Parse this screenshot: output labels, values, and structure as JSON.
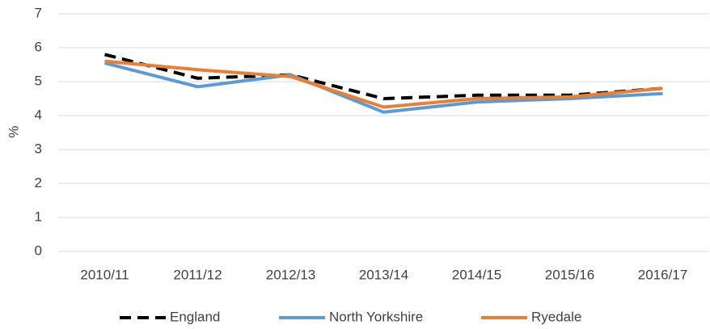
{
  "chart_data": {
    "type": "line",
    "y_label": "%",
    "categories": [
      "2010/11",
      "2011/12",
      "2012/13",
      "2013/14",
      "2014/15",
      "2015/16",
      "2016/17"
    ],
    "series": [
      {
        "name": "England",
        "color": "#000000",
        "dash": true,
        "values": [
          5.8,
          5.1,
          5.2,
          4.5,
          4.6,
          4.6,
          4.8
        ]
      },
      {
        "name": "North Yorkshire",
        "color": "#5b9bd5",
        "dash": false,
        "values": [
          5.55,
          4.85,
          5.2,
          4.1,
          4.4,
          4.5,
          4.65
        ]
      },
      {
        "name": "Ryedale",
        "color": "#ed7d31",
        "dash": false,
        "values": [
          5.6,
          5.35,
          5.15,
          4.25,
          4.5,
          4.55,
          4.8
        ]
      }
    ],
    "ylim": [
      0,
      7
    ],
    "yticks": [
      0,
      1,
      2,
      3,
      4,
      5,
      6,
      7
    ],
    "grid": true,
    "legend": "bottom"
  }
}
